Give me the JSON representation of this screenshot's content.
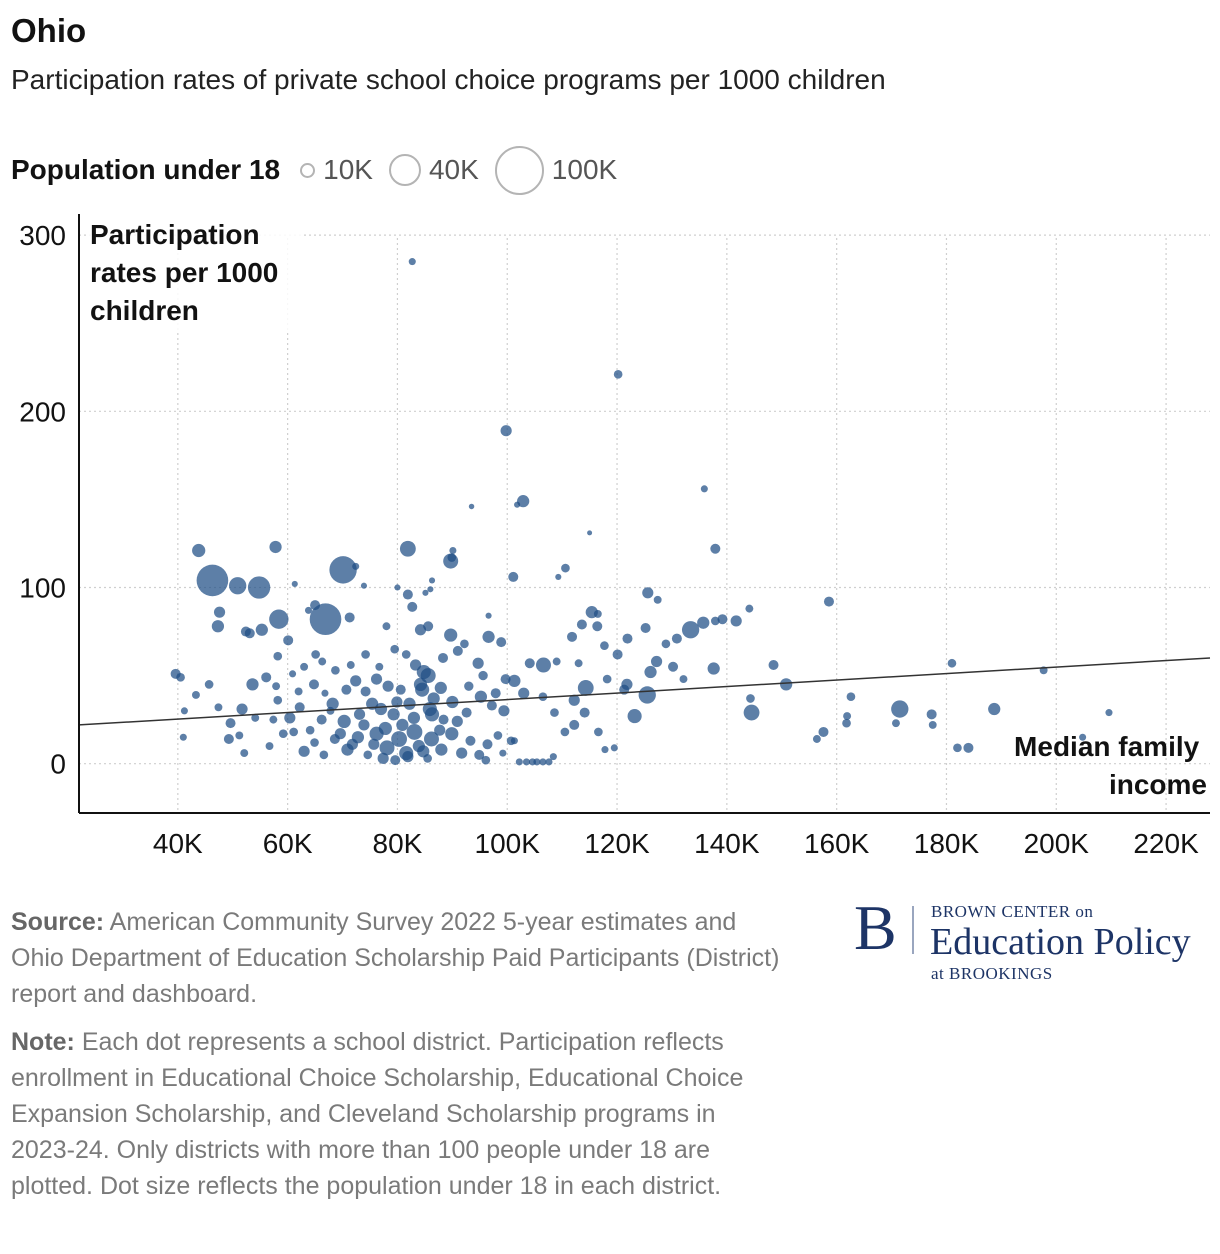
{
  "header": {
    "title": "Ohio",
    "subtitle": "Participation rates of private school choice programs per 1000 children"
  },
  "legend": {
    "title": "Population under 18",
    "sizes": [
      {
        "label": "10K",
        "value": 10000
      },
      {
        "label": "40K",
        "value": 40000
      },
      {
        "label": "100K",
        "value": 100000
      }
    ]
  },
  "chart_data": {
    "type": "scatter",
    "title": "Ohio",
    "subtitle": "Participation rates of private school choice programs per 1000 children",
    "xlabel": "Median family income",
    "ylabel": "Participation rates per 1000 children",
    "x_ticks": [
      40000,
      60000,
      80000,
      100000,
      120000,
      140000,
      160000,
      180000,
      200000,
      220000
    ],
    "x_tick_labels": [
      "40K",
      "60K",
      "80K",
      "100K",
      "120K",
      "140K",
      "160K",
      "180K",
      "200K",
      "220K"
    ],
    "y_ticks": [
      0,
      100,
      200,
      300
    ],
    "y_tick_labels": [
      "0",
      "100",
      "200",
      "300"
    ],
    "xlim": [
      22000,
      228000
    ],
    "ylim": [
      -28,
      312
    ],
    "grid": true,
    "size_variable": "Population under 18",
    "color": "#1f4e85",
    "trendline": {
      "x": [
        22000,
        228000
      ],
      "y": [
        22,
        60
      ]
    },
    "points": [
      [
        82700,
        285,
        2000
      ],
      [
        120200,
        221,
        3000
      ],
      [
        99800,
        189,
        5000
      ],
      [
        102900,
        149,
        6000
      ],
      [
        101800,
        147,
        1500
      ],
      [
        93500,
        146,
        1200
      ],
      [
        135900,
        156,
        2000
      ],
      [
        115000,
        131,
        1000
      ],
      [
        137900,
        122,
        4000
      ],
      [
        81900,
        122,
        10000
      ],
      [
        43800,
        121,
        7000
      ],
      [
        57800,
        123,
        6000
      ],
      [
        89900,
        117,
        3000
      ],
      [
        90100,
        121,
        2000
      ],
      [
        89700,
        115,
        9000
      ],
      [
        70100,
        110,
        30000
      ],
      [
        72400,
        112,
        2000
      ],
      [
        110600,
        111,
        3000
      ],
      [
        109300,
        106,
        1500
      ],
      [
        101100,
        106,
        4000
      ],
      [
        46300,
        104,
        40000
      ],
      [
        50900,
        101,
        12000
      ],
      [
        54800,
        100,
        20000
      ],
      [
        86300,
        104,
        1500
      ],
      [
        73900,
        101,
        1500
      ],
      [
        61300,
        102,
        1500
      ],
      [
        80000,
        100,
        1500
      ],
      [
        86000,
        99,
        1500
      ],
      [
        85100,
        97,
        1500
      ],
      [
        81900,
        96,
        4000
      ],
      [
        125600,
        97,
        5000
      ],
      [
        127400,
        93,
        2500
      ],
      [
        158600,
        92,
        4000
      ],
      [
        144100,
        88,
        2500
      ],
      [
        47600,
        86,
        5000
      ],
      [
        82700,
        89,
        4000
      ],
      [
        65000,
        90,
        4000
      ],
      [
        66900,
        82,
        40000
      ],
      [
        58400,
        82,
        15000
      ],
      [
        71300,
        83,
        4000
      ],
      [
        63800,
        87,
        2000
      ],
      [
        96600,
        84,
        1500
      ],
      [
        115400,
        86,
        6000
      ],
      [
        116500,
        85,
        2500
      ],
      [
        135700,
        80,
        6000
      ],
      [
        139200,
        82,
        4000
      ],
      [
        141700,
        81,
        5000
      ],
      [
        137900,
        81,
        3000
      ],
      [
        133400,
        76,
        12000
      ],
      [
        130900,
        71,
        4000
      ],
      [
        47300,
        78,
        6000
      ],
      [
        52400,
        75,
        4000
      ],
      [
        53100,
        74,
        4000
      ],
      [
        55300,
        76,
        6000
      ],
      [
        60100,
        70,
        4000
      ],
      [
        78000,
        78,
        2500
      ],
      [
        84200,
        76,
        5000
      ],
      [
        85600,
        78,
        4000
      ],
      [
        89700,
        73,
        7000
      ],
      [
        92200,
        68,
        3000
      ],
      [
        96600,
        72,
        6000
      ],
      [
        98900,
        69,
        4000
      ],
      [
        111800,
        72,
        4000
      ],
      [
        113600,
        79,
        4000
      ],
      [
        116400,
        78,
        4000
      ],
      [
        121900,
        71,
        4000
      ],
      [
        125200,
        77,
        4000
      ],
      [
        128900,
        68,
        3000
      ],
      [
        137600,
        54,
        6000
      ],
      [
        148500,
        56,
        4000
      ],
      [
        150800,
        45,
        6000
      ],
      [
        144300,
        37,
        3000
      ],
      [
        144500,
        29,
        10000
      ],
      [
        157600,
        18,
        4000
      ],
      [
        156400,
        14,
        2500
      ],
      [
        162600,
        38,
        3000
      ],
      [
        161900,
        27,
        2500
      ],
      [
        161800,
        23,
        3000
      ],
      [
        171500,
        31,
        12000
      ],
      [
        170800,
        23,
        2500
      ],
      [
        177300,
        28,
        4000
      ],
      [
        177500,
        22,
        2500
      ],
      [
        181000,
        57,
        3000
      ],
      [
        182000,
        9,
        3000
      ],
      [
        184000,
        9,
        4000
      ],
      [
        188700,
        31,
        6000
      ],
      [
        197700,
        53,
        2500
      ],
      [
        204800,
        15,
        2000
      ],
      [
        209600,
        29,
        2000
      ],
      [
        125500,
        39,
        12000
      ],
      [
        123200,
        27,
        8000
      ],
      [
        114300,
        43,
        10000
      ],
      [
        112200,
        36,
        5000
      ],
      [
        118200,
        48,
        3000
      ],
      [
        120100,
        62,
        4000
      ],
      [
        121800,
        45,
        5000
      ],
      [
        126100,
        52,
        6000
      ],
      [
        127200,
        58,
        5000
      ],
      [
        130200,
        55,
        4000
      ],
      [
        132100,
        48,
        2500
      ],
      [
        106600,
        56,
        9000
      ],
      [
        104100,
        57,
        4000
      ],
      [
        101300,
        47,
        6000
      ],
      [
        103000,
        40,
        5000
      ],
      [
        99400,
        30,
        5000
      ],
      [
        97200,
        33,
        4000
      ],
      [
        95200,
        38,
        6000
      ],
      [
        92600,
        29,
        4000
      ],
      [
        90000,
        35,
        6000
      ],
      [
        88400,
        25,
        4000
      ],
      [
        86300,
        28,
        8000
      ],
      [
        84500,
        42,
        8000
      ],
      [
        82200,
        34,
        6000
      ],
      [
        80600,
        42,
        4000
      ],
      [
        79300,
        28,
        6000
      ],
      [
        77800,
        20,
        7000
      ],
      [
        75400,
        34,
        6000
      ],
      [
        73100,
        28,
        5000
      ],
      [
        70700,
        42,
        4000
      ],
      [
        68200,
        34,
        6000
      ],
      [
        66200,
        25,
        4000
      ],
      [
        64800,
        45,
        4000
      ],
      [
        62200,
        32,
        4000
      ],
      [
        60400,
        26,
        5000
      ],
      [
        58200,
        36,
        3000
      ],
      [
        56100,
        49,
        4000
      ],
      [
        53600,
        45,
        6000
      ],
      [
        51700,
        31,
        5000
      ],
      [
        49600,
        23,
        4000
      ],
      [
        47400,
        32,
        2500
      ],
      [
        45700,
        45,
        3000
      ],
      [
        43300,
        39,
        2500
      ],
      [
        41200,
        30,
        2000
      ],
      [
        39600,
        51,
        4000
      ],
      [
        40500,
        49,
        3000
      ],
      [
        41000,
        15,
        2000
      ],
      [
        49300,
        14,
        4000
      ],
      [
        51200,
        16,
        2500
      ],
      [
        52100,
        6,
        2500
      ],
      [
        56700,
        10,
        2500
      ],
      [
        59200,
        17,
        3000
      ],
      [
        63000,
        7,
        5000
      ],
      [
        64900,
        12,
        3000
      ],
      [
        66600,
        5,
        3000
      ],
      [
        68600,
        14,
        4000
      ],
      [
        70900,
        8,
        6000
      ],
      [
        72800,
        15,
        6000
      ],
      [
        74600,
        5,
        3000
      ],
      [
        76200,
        17,
        8000
      ],
      [
        78100,
        9,
        9000
      ],
      [
        80300,
        14,
        10000
      ],
      [
        81600,
        6,
        8000
      ],
      [
        83100,
        18,
        10000
      ],
      [
        84700,
        7,
        6000
      ],
      [
        86200,
        14,
        9000
      ],
      [
        88000,
        8,
        6000
      ],
      [
        89900,
        17,
        7000
      ],
      [
        91700,
        6,
        5000
      ],
      [
        93300,
        13,
        4000
      ],
      [
        94900,
        5,
        4000
      ],
      [
        96400,
        11,
        4000
      ],
      [
        98300,
        16,
        3000
      ],
      [
        100700,
        13,
        3000
      ],
      [
        102200,
        1,
        2000
      ],
      [
        103500,
        1,
        2000
      ],
      [
        104600,
        1,
        2000
      ],
      [
        105400,
        1,
        2000
      ],
      [
        106500,
        1,
        2000
      ],
      [
        107600,
        1,
        2000
      ],
      [
        108400,
        4,
        2000
      ],
      [
        110500,
        18,
        3000
      ],
      [
        112200,
        22,
        4000
      ],
      [
        114100,
        29,
        4000
      ],
      [
        116600,
        18,
        3000
      ],
      [
        119500,
        9,
        2000
      ],
      [
        117800,
        8,
        2000
      ],
      [
        121300,
        42,
        4000
      ],
      [
        84800,
        52,
        8000
      ],
      [
        84200,
        45,
        7000
      ],
      [
        83300,
        56,
        5000
      ],
      [
        85600,
        50,
        9000
      ],
      [
        86600,
        37,
        6000
      ],
      [
        87900,
        43,
        6000
      ],
      [
        85900,
        31,
        8000
      ],
      [
        83000,
        26,
        6000
      ],
      [
        80900,
        22,
        6000
      ],
      [
        79900,
        35,
        5000
      ],
      [
        78300,
        44,
        5000
      ],
      [
        77000,
        31,
        6000
      ],
      [
        76200,
        48,
        5000
      ],
      [
        74200,
        41,
        4000
      ],
      [
        72400,
        47,
        5000
      ],
      [
        70300,
        24,
        7000
      ],
      [
        69600,
        17,
        5000
      ],
      [
        71800,
        11,
        5000
      ],
      [
        73900,
        22,
        5000
      ],
      [
        75700,
        11,
        5000
      ],
      [
        77400,
        3,
        5000
      ],
      [
        79600,
        2,
        4000
      ],
      [
        81900,
        4,
        5000
      ],
      [
        83900,
        10,
        6000
      ],
      [
        85500,
        3,
        3000
      ],
      [
        87700,
        19,
        5000
      ],
      [
        90900,
        24,
        5000
      ],
      [
        93000,
        44,
        3500
      ],
      [
        95600,
        50,
        3500
      ],
      [
        97900,
        40,
        4000
      ],
      [
        99700,
        48,
        4000
      ],
      [
        94700,
        57,
        5000
      ],
      [
        91000,
        64,
        4000
      ],
      [
        88300,
        60,
        4000
      ],
      [
        81600,
        62,
        3000
      ],
      [
        79500,
        65,
        3000
      ],
      [
        76700,
        55,
        2500
      ],
      [
        74200,
        62,
        3000
      ],
      [
        71500,
        56,
        2500
      ],
      [
        68700,
        53,
        3000
      ],
      [
        66300,
        58,
        2500
      ],
      [
        65100,
        62,
        3000
      ],
      [
        63000,
        55,
        2500
      ],
      [
        58200,
        61,
        3000
      ],
      [
        60900,
        51,
        2000
      ],
      [
        62000,
        41,
        2500
      ],
      [
        57900,
        44,
        2500
      ],
      [
        54100,
        26,
        2500
      ],
      [
        57400,
        25,
        2500
      ],
      [
        61100,
        18,
        3000
      ],
      [
        64100,
        19,
        3000
      ],
      [
        66800,
        40,
        2000
      ],
      [
        67800,
        30,
        2500
      ],
      [
        96100,
        2,
        3000
      ],
      [
        99200,
        6,
        2000
      ],
      [
        101300,
        13,
        2000
      ],
      [
        109000,
        58,
        2500
      ],
      [
        113000,
        57,
        2500
      ],
      [
        117700,
        67,
        3000
      ],
      [
        106500,
        38,
        3000
      ],
      [
        108600,
        29,
        3000
      ]
    ]
  },
  "axes": {
    "y_title": "Participation rates per 1000 children",
    "x_title": "Median family income"
  },
  "footer": {
    "source_label": "Source:",
    "source_text": "American Community Survey 2022 5-year estimates and Ohio Department of Education Scholarship Paid Participants (District) report and dashboard.",
    "note_label": "Note:",
    "note_text": "Each dot represents a school district. Participation reflects enrollment in Educational Choice Scholarship, Educational Choice Expansion Scholarship, and Cleveland Scholarship programs in 2023-24. Only districts with more than 100 people under 18 are plotted. Dot size reflects the population under 18 in each district."
  },
  "logo": {
    "mark": "B",
    "line1": "BROWN CENTER on",
    "line2": "Education Policy",
    "line3": "at BROOKINGS"
  }
}
